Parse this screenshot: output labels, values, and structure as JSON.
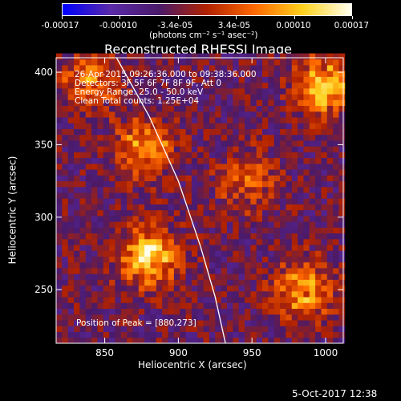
{
  "chart_data": {
    "type": "heatmap",
    "title": "Reconstructed RHESSI Image",
    "xlabel": "Heliocentric X (arcsec)",
    "ylabel": "Heliocentric Y (arcsec)",
    "xlim": [
      817,
      1012
    ],
    "ylim": [
      213,
      410
    ],
    "xticks": [
      850,
      900,
      950,
      1000
    ],
    "yticks": [
      250,
      300,
      350,
      400
    ],
    "colorbar": {
      "range": [
        -0.00017,
        0.00017
      ],
      "ticks": [
        "-0.00017",
        "-0.00010",
        "-3.4e-05",
        "3.4e-05",
        "0.00010",
        "0.00017"
      ],
      "unit_label": "(photons cm⁻² s⁻¹ asec⁻²)",
      "colors": [
        "#0000ff",
        "#5a2aa8",
        "#4a1a6a",
        "#b22200",
        "#ff6a00",
        "#ffd21e",
        "#fffff0"
      ]
    },
    "sources": [
      {
        "x": 880,
        "y": 273,
        "peak": 0.00017
      },
      {
        "x": 878,
        "y": 348,
        "peak": 0.00012
      },
      {
        "x": 1000,
        "y": 390,
        "peak": 0.00016
      },
      {
        "x": 985,
        "y": 250,
        "peak": 0.00013
      },
      {
        "x": 840,
        "y": 395,
        "peak": 0.00011
      },
      {
        "x": 948,
        "y": 325,
        "peak": 9e-05
      }
    ],
    "limb_curve": [
      [
        858,
        410
      ],
      [
        880,
        370
      ],
      [
        900,
        325
      ],
      [
        915,
        280
      ],
      [
        925,
        245
      ],
      [
        932,
        213
      ]
    ],
    "annotations": {
      "time": "26-Apr-2015 09:26:36.000 to 09:38:36.000",
      "detectors": "Detectors: 3F 5F 6F 7F 8F 9F, Att 0",
      "energy": "Energy Range: 25.0 - 50.0 keV",
      "clean": "Clean     Total counts: 1.25E+04",
      "peak": "Position of Peak = [880,273]"
    },
    "grid": false
  },
  "footer": {
    "date": "5-Oct-2017 12:38"
  }
}
